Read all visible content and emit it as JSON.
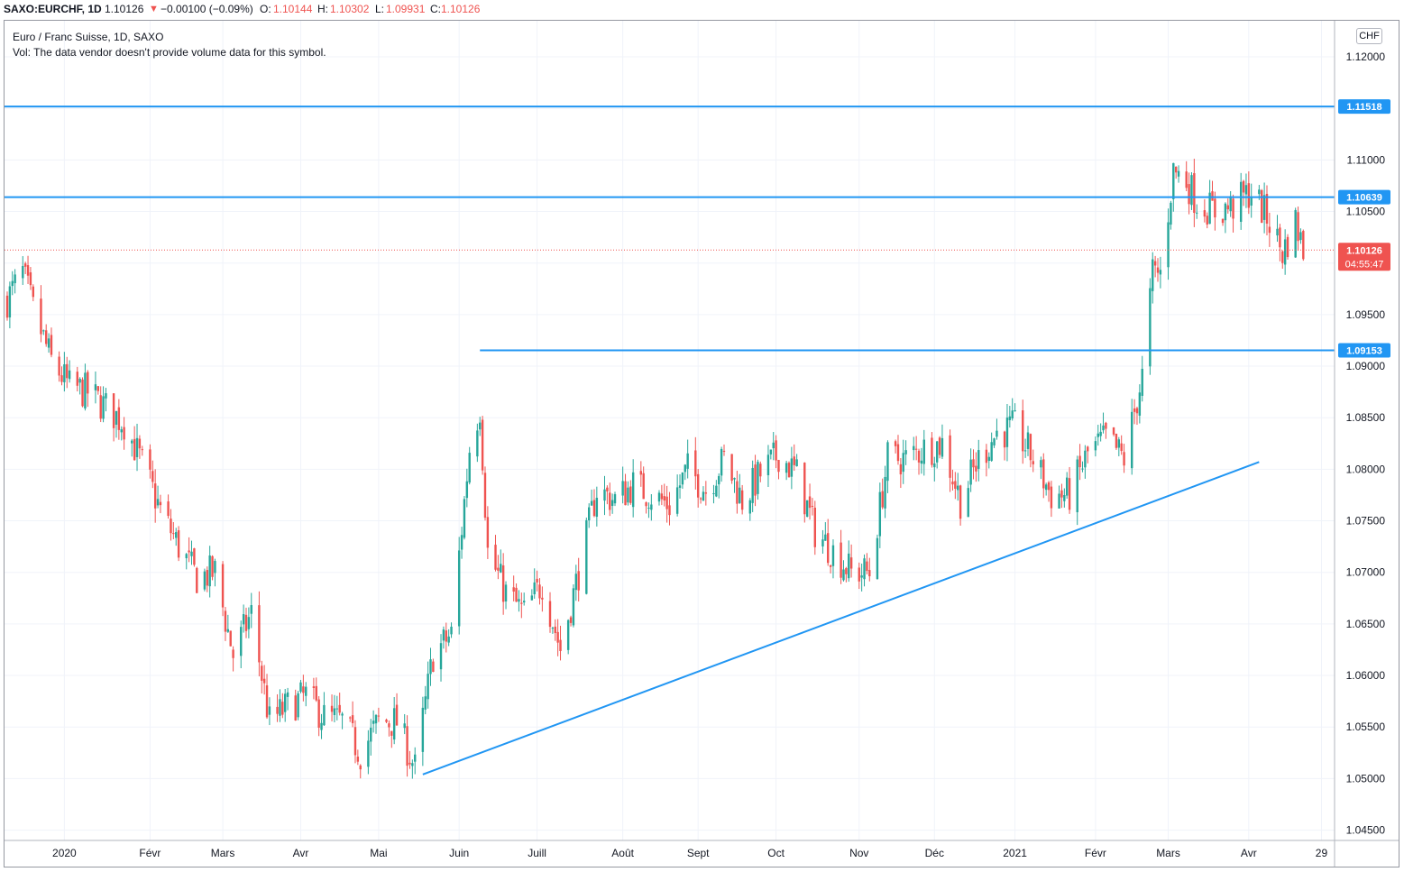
{
  "header": {
    "symbol": "SAXO:EURCHF, 1D",
    "last": "1.10126",
    "change_arrow": "▼",
    "change": "−0.00100 (−0.09%)",
    "o_label": "O:",
    "o_value": "1.10144",
    "h_label": "H:",
    "h_value": "1.10302",
    "l_label": "L:",
    "l_value": "1.09931",
    "c_label": "C:",
    "c_value": "1.10126"
  },
  "legend": {
    "title": "Euro / Franc Suisse, 1D, SAXO",
    "volume_note": "Vol: The data vendor doesn't provide volume data for this symbol."
  },
  "currency_button": "CHF",
  "colors": {
    "up": "#26a69a",
    "down": "#ef5350",
    "drawing": "#2196f3",
    "grid": "#f0f3fa",
    "axis_text": "#131722",
    "neg_text": "#ef5350"
  },
  "chart_data": {
    "type": "candlestick",
    "ylim": [
      1.044,
      1.1235
    ],
    "y_ticks": [
      "1.12000",
      "1.11500",
      "1.11000",
      "1.10500",
      "1.10000",
      "1.09500",
      "1.09000",
      "1.08500",
      "1.08000",
      "1.07500",
      "1.07000",
      "1.06500",
      "1.06000",
      "1.05500",
      "1.05000",
      "1.04500"
    ],
    "x_ticks": [
      {
        "label": "2020",
        "date": "2020-01-01"
      },
      {
        "label": "Févr",
        "date": "2020-02-03"
      },
      {
        "label": "Mars",
        "date": "2020-03-02"
      },
      {
        "label": "Avr",
        "date": "2020-04-01"
      },
      {
        "label": "Mai",
        "date": "2020-05-01"
      },
      {
        "label": "Juin",
        "date": "2020-06-01"
      },
      {
        "label": "Juill",
        "date": "2020-07-01"
      },
      {
        "label": "Août",
        "date": "2020-08-03"
      },
      {
        "label": "Sept",
        "date": "2020-09-01"
      },
      {
        "label": "Oct",
        "date": "2020-10-01"
      },
      {
        "label": "Nov",
        "date": "2020-11-02"
      },
      {
        "label": "Déc",
        "date": "2020-12-01"
      },
      {
        "label": "2021",
        "date": "2021-01-01"
      },
      {
        "label": "Févr",
        "date": "2021-02-01"
      },
      {
        "label": "Mars",
        "date": "2021-03-01"
      },
      {
        "label": "Avr",
        "date": "2021-04-01"
      },
      {
        "label": "29",
        "date": "2021-04-29"
      }
    ],
    "x_range": [
      "2019-12-10",
      "2021-05-03"
    ],
    "closes": [
      [
        "2019-12-10",
        1.0965
      ],
      [
        "2019-12-16",
        1.099
      ],
      [
        "2019-12-20",
        1.0955
      ],
      [
        "2019-12-27",
        1.0905
      ],
      [
        "2020-01-03",
        1.088
      ],
      [
        "2020-01-10",
        1.0875
      ],
      [
        "2020-01-17",
        1.086
      ],
      [
        "2020-01-24",
        1.0845
      ],
      [
        "2020-01-31",
        1.0805
      ],
      [
        "2020-02-07",
        1.076
      ],
      [
        "2020-02-14",
        1.0725
      ],
      [
        "2020-02-21",
        1.0695
      ],
      [
        "2020-02-28",
        1.07
      ],
      [
        "2020-03-06",
        1.062
      ],
      [
        "2020-03-13",
        1.066
      ],
      [
        "2020-03-20",
        1.0555
      ],
      [
        "2020-03-27",
        1.057
      ],
      [
        "2020-04-03",
        1.058
      ],
      [
        "2020-04-10",
        1.056
      ],
      [
        "2020-04-17",
        1.0555
      ],
      [
        "2020-04-24",
        1.0525
      ],
      [
        "2020-05-01",
        1.0555
      ],
      [
        "2020-05-08",
        1.0555
      ],
      [
        "2020-05-15",
        1.051
      ],
      [
        "2020-05-22",
        1.062
      ],
      [
        "2020-05-29",
        1.064
      ],
      [
        "2020-06-05",
        1.082
      ],
      [
        "2020-06-09",
        1.086
      ],
      [
        "2020-06-12",
        1.072
      ],
      [
        "2020-06-19",
        1.068
      ],
      [
        "2020-06-26",
        1.066
      ],
      [
        "2020-07-03",
        1.069
      ],
      [
        "2020-07-10",
        1.0625
      ],
      [
        "2020-07-17",
        1.07
      ],
      [
        "2020-07-24",
        1.078
      ],
      [
        "2020-07-31",
        1.077
      ],
      [
        "2020-08-07",
        1.0785
      ],
      [
        "2020-08-14",
        1.0775
      ],
      [
        "2020-08-21",
        1.0765
      ],
      [
        "2020-08-28",
        1.08
      ],
      [
        "2020-09-04",
        1.078
      ],
      [
        "2020-09-11",
        1.081
      ],
      [
        "2020-09-18",
        1.077
      ],
      [
        "2020-09-25",
        1.0795
      ],
      [
        "2020-10-02",
        1.0815
      ],
      [
        "2020-10-09",
        1.0795
      ],
      [
        "2020-10-16",
        1.074
      ],
      [
        "2020-10-23",
        1.072
      ],
      [
        "2020-10-30",
        1.07
      ],
      [
        "2020-11-06",
        1.07
      ],
      [
        "2020-11-13",
        1.081
      ],
      [
        "2020-11-20",
        1.081
      ],
      [
        "2020-11-27",
        1.082
      ],
      [
        "2020-12-04",
        1.0825
      ],
      [
        "2020-12-11",
        1.077
      ],
      [
        "2020-12-18",
        1.081
      ],
      [
        "2020-12-25",
        1.0835
      ],
      [
        "2021-01-01",
        1.084
      ],
      [
        "2021-01-08",
        1.081
      ],
      [
        "2021-01-15",
        1.0775
      ],
      [
        "2021-01-22",
        1.0775
      ],
      [
        "2021-01-29",
        1.0815
      ],
      [
        "2021-02-05",
        1.083
      ],
      [
        "2021-02-12",
        1.081
      ],
      [
        "2021-02-19",
        1.089
      ],
      [
        "2021-02-23",
        1.099
      ],
      [
        "2021-02-26",
        1.099
      ],
      [
        "2021-03-03",
        1.109
      ],
      [
        "2021-03-08",
        1.108
      ],
      [
        "2021-03-12",
        1.106
      ],
      [
        "2021-03-19",
        1.105
      ],
      [
        "2021-03-26",
        1.1055
      ],
      [
        "2021-04-02",
        1.107
      ],
      [
        "2021-04-09",
        1.104
      ],
      [
        "2021-04-14",
        1.101
      ],
      [
        "2021-04-19",
        1.104
      ],
      [
        "2021-04-22",
        1.1013
      ]
    ],
    "price_lines": [
      {
        "label": "1.11518",
        "price": 1.11518
      },
      {
        "label": "1.10639",
        "price": 1.10639
      },
      {
        "label": "1.09153",
        "price": 1.09153,
        "from": "2020-06-09"
      }
    ],
    "trendline": {
      "start": [
        "2020-05-18",
        1.0504
      ],
      "end": [
        "2021-04-05",
        1.0807
      ]
    },
    "last_price": {
      "label": "1.10126",
      "price": 1.10126,
      "countdown": "04:55:47"
    }
  }
}
